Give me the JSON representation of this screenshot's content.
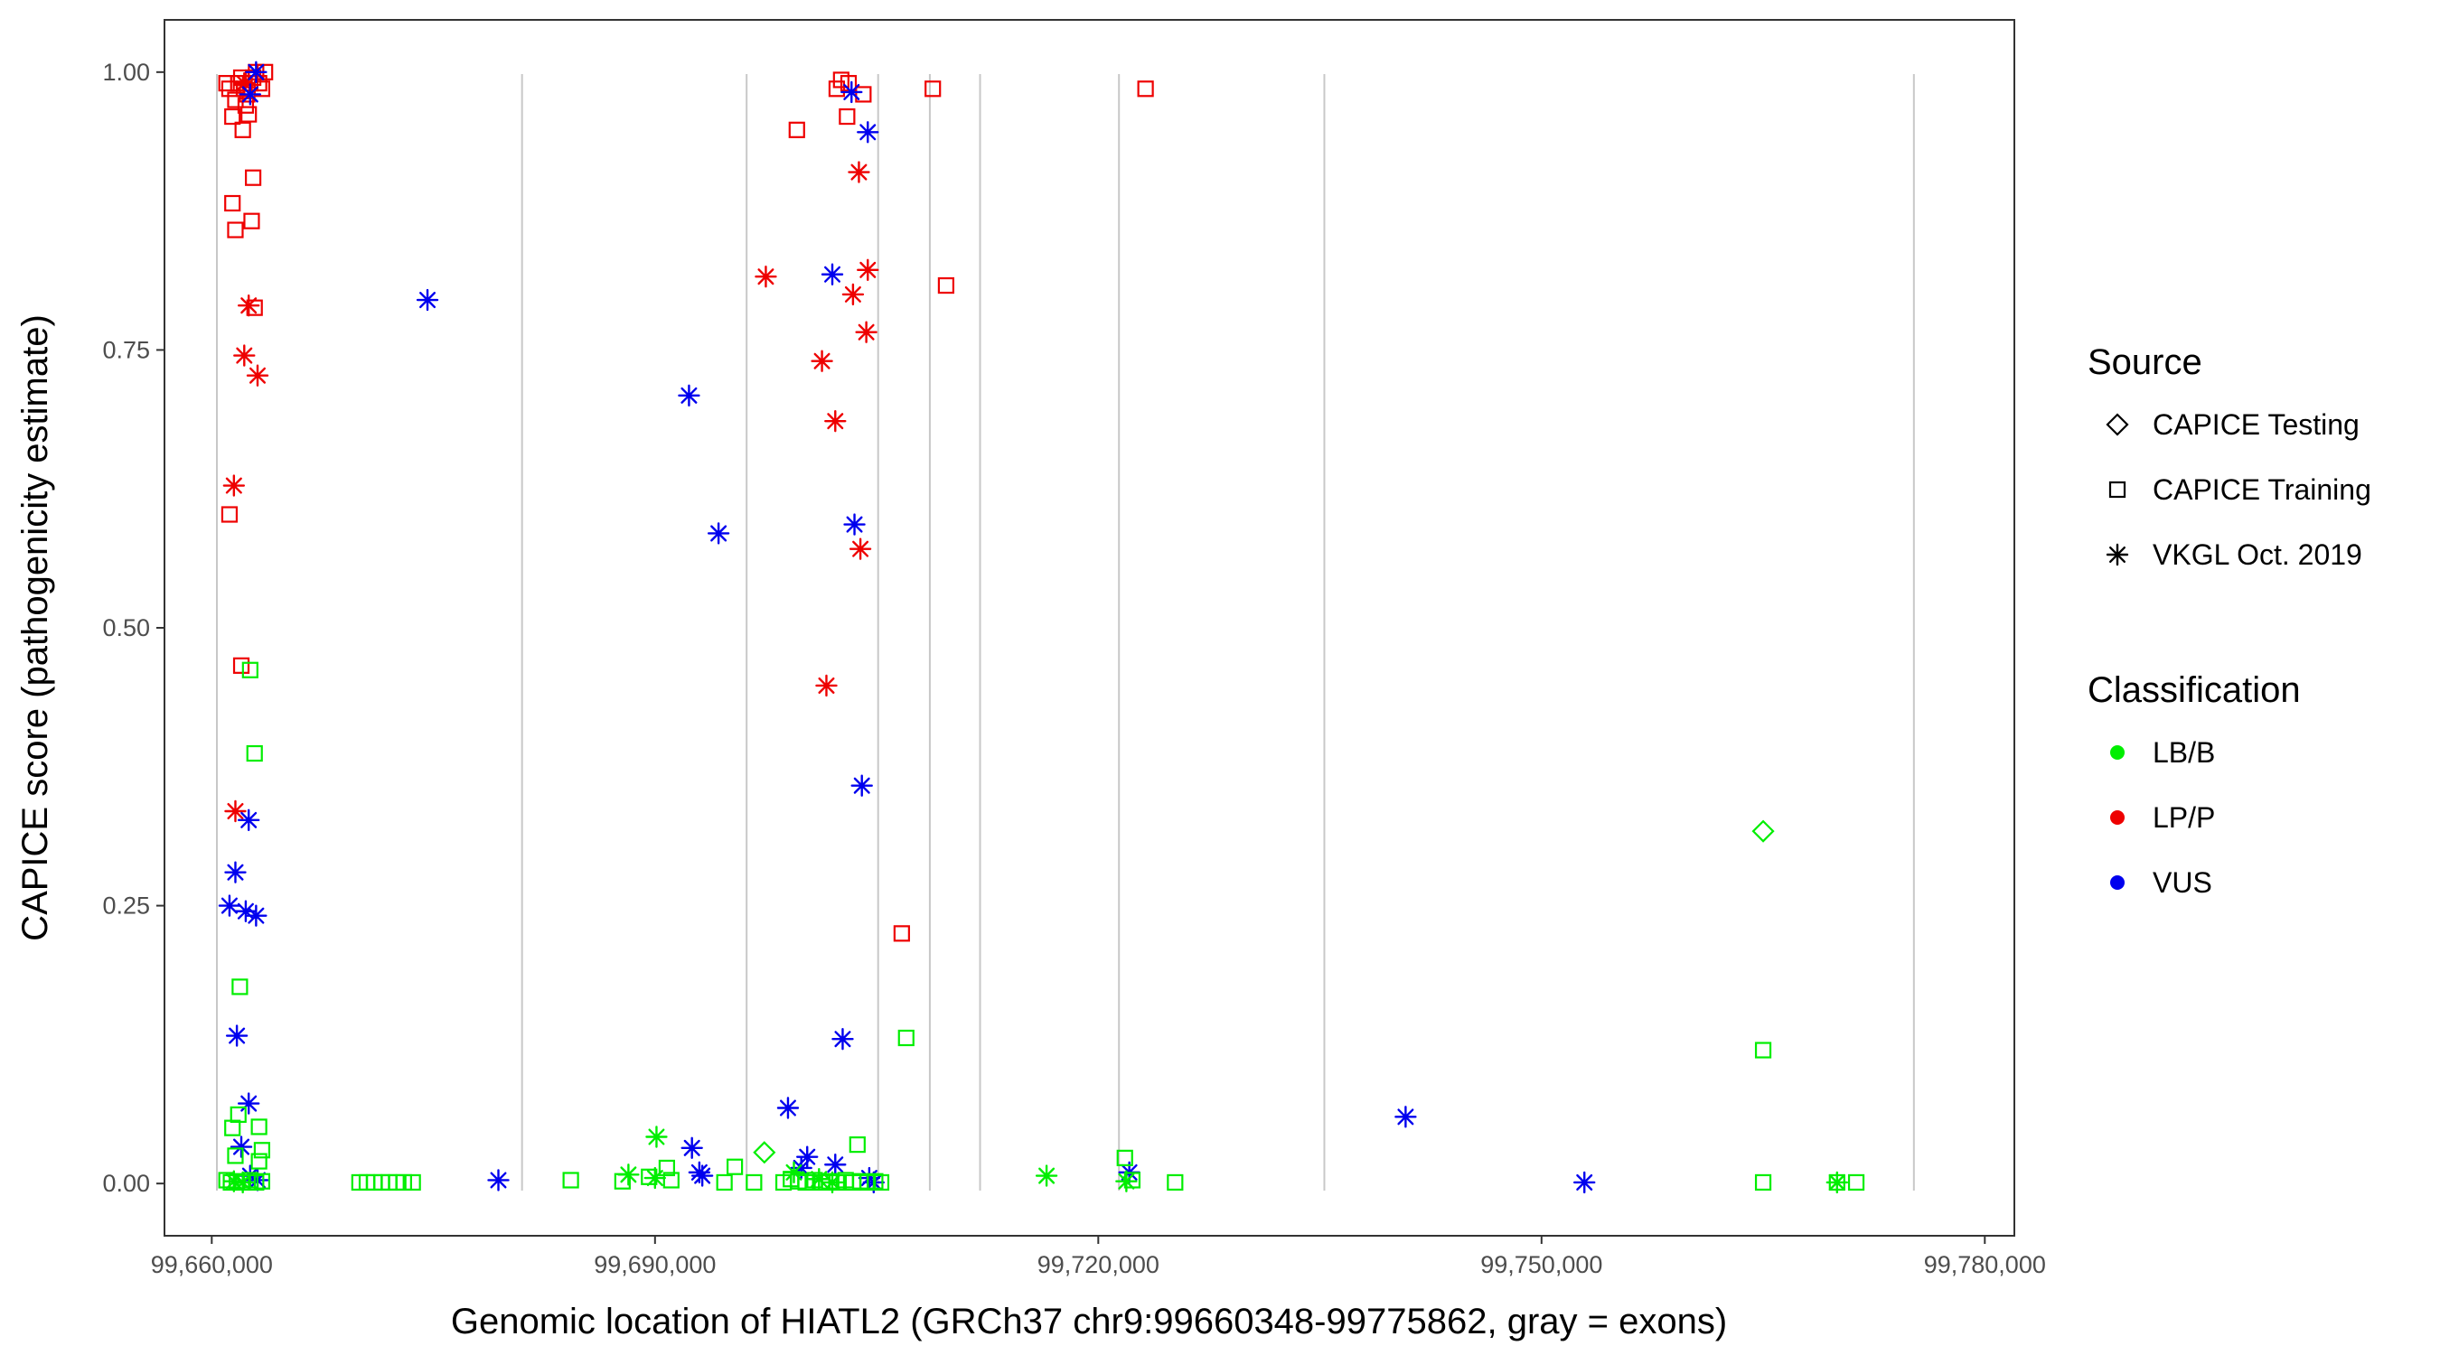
{
  "chart_data": {
    "type": "scatter",
    "xlabel": "Genomic location of HIATL2 (GRCh37 chr9:99660348-99775862, gray = exons)",
    "ylabel": "CAPICE score (pathogenicity estimate)",
    "xlim": [
      99656800,
      99782000
    ],
    "ylim": [
      -0.047,
      1.047
    ],
    "x_ticks": [
      99660000,
      99690000,
      99720000,
      99750000,
      99780000
    ],
    "x_tick_labels": [
      "99,660,000",
      "99,690,000",
      "99,720,000",
      "99,750,000",
      "99,780,000"
    ],
    "y_ticks": [
      0,
      0.25,
      0.5,
      0.75,
      1.0
    ],
    "y_tick_labels": [
      "0.00",
      "0.25",
      "0.50",
      "0.75",
      "1.00"
    ],
    "exons": [
      99660348,
      99681000,
      99696200,
      99705100,
      99708600,
      99712000,
      99721400,
      99735300,
      99775200
    ],
    "grid": false,
    "colors": {
      "LB/B": "#00ee00",
      "LP/P": "#ee0000",
      "VUS": "#0000ee",
      "exon": "#c8c8c8",
      "frame": "#333333",
      "axis_text": "#4d4d4d"
    },
    "legends": [
      {
        "title": "Source",
        "entries": [
          {
            "label": "CAPICE Testing",
            "shape": "diamond"
          },
          {
            "label": "CAPICE Training",
            "shape": "square"
          },
          {
            "label": "VKGL Oct. 2019",
            "shape": "asterisk"
          }
        ]
      },
      {
        "title": "Classification",
        "entries": [
          {
            "label": "LB/B",
            "color": "#00ee00"
          },
          {
            "label": "LP/P",
            "color": "#ee0000"
          },
          {
            "label": "VUS",
            "color": "#0000ee"
          }
        ]
      }
    ],
    "legend_position": "right",
    "series": [
      {
        "source": "CAPICE Training",
        "class": "LP/P",
        "points": [
          [
            99661000,
            0.99
          ],
          [
            99661200,
            0.985
          ],
          [
            99661400,
            0.96
          ],
          [
            99661600,
            0.975
          ],
          [
            99661800,
            0.99
          ],
          [
            99662000,
            0.995
          ],
          [
            99662200,
            0.985
          ],
          [
            99662400,
            0.98
          ],
          [
            99662600,
            0.99
          ],
          [
            99662800,
            0.995
          ],
          [
            99663000,
            1.0
          ],
          [
            99663200,
            0.99
          ],
          [
            99663400,
            0.985
          ],
          [
            99663600,
            1.0
          ],
          [
            99662100,
            0.948
          ],
          [
            99662300,
            0.97
          ],
          [
            99662500,
            0.962
          ],
          [
            99662800,
            0.905
          ],
          [
            99661400,
            0.882
          ],
          [
            99661600,
            0.858
          ],
          [
            99662700,
            0.866
          ],
          [
            99662900,
            0.788
          ],
          [
            99661200,
            0.602
          ],
          [
            99662000,
            0.466
          ],
          [
            99699600,
            0.948
          ],
          [
            99702300,
            0.985
          ],
          [
            99702600,
            0.993
          ],
          [
            99703100,
            0.99
          ],
          [
            99703000,
            0.96
          ],
          [
            99704100,
            0.98
          ],
          [
            99706700,
            0.225
          ],
          [
            99708800,
            0.985
          ],
          [
            99709700,
            0.808
          ],
          [
            99723200,
            0.985
          ]
        ]
      },
      {
        "source": "VKGL Oct. 2019",
        "class": "LP/P",
        "points": [
          [
            99662200,
            0.99
          ],
          [
            99662500,
            0.79
          ],
          [
            99662200,
            0.745
          ],
          [
            99663100,
            0.727
          ],
          [
            99661500,
            0.628
          ],
          [
            99661600,
            0.335
          ],
          [
            99697500,
            0.816
          ],
          [
            99701300,
            0.74
          ],
          [
            99702200,
            0.686
          ],
          [
            99703400,
            0.8
          ],
          [
            99703800,
            0.91
          ],
          [
            99704400,
            0.822
          ],
          [
            99704300,
            0.766
          ],
          [
            99703900,
            0.571
          ],
          [
            99701600,
            0.448
          ]
        ]
      },
      {
        "source": "VKGL Oct. 2019",
        "class": "VUS",
        "points": [
          [
            99663000,
            1.0
          ],
          [
            99662600,
            0.98
          ],
          [
            99674600,
            0.795
          ],
          [
            99692300,
            0.709
          ],
          [
            99694300,
            0.585
          ],
          [
            99702000,
            0.818
          ],
          [
            99703300,
            0.982
          ],
          [
            99704400,
            0.946
          ],
          [
            99703500,
            0.593
          ],
          [
            99704000,
            0.358
          ],
          [
            99702700,
            0.13
          ],
          [
            99662500,
            0.327
          ],
          [
            99661600,
            0.28
          ],
          [
            99661200,
            0.25
          ],
          [
            99662300,
            0.245
          ],
          [
            99663000,
            0.241
          ],
          [
            99661700,
            0.133
          ],
          [
            99662500,
            0.072
          ],
          [
            99662000,
            0.033
          ],
          [
            99662600,
            0.007
          ],
          [
            99663100,
            0.003
          ],
          [
            99679400,
            0.003
          ],
          [
            99692500,
            0.032
          ],
          [
            99693000,
            0.01
          ],
          [
            99693200,
            0.007
          ],
          [
            99699000,
            0.068
          ],
          [
            99700300,
            0.024
          ],
          [
            99699900,
            0.014
          ],
          [
            99702200,
            0.017
          ],
          [
            99704500,
            0.005
          ],
          [
            99704800,
            0.001
          ],
          [
            99722100,
            0.01
          ],
          [
            99740800,
            0.06
          ],
          [
            99752900,
            0.001
          ]
        ]
      },
      {
        "source": "CAPICE Training",
        "class": "LB/B",
        "points": [
          [
            99662600,
            0.462
          ],
          [
            99662900,
            0.387
          ],
          [
            99661900,
            0.177
          ],
          [
            99661400,
            0.05
          ],
          [
            99661800,
            0.062
          ],
          [
            99663200,
            0.051
          ],
          [
            99663400,
            0.03
          ],
          [
            99663200,
            0.02
          ],
          [
            99661600,
            0.025
          ],
          [
            99661000,
            0.003
          ],
          [
            99661300,
            0.001
          ],
          [
            99661700,
            0.002
          ],
          [
            99662100,
            0.001
          ],
          [
            99662600,
            0.003
          ],
          [
            99663000,
            0.001
          ],
          [
            99663400,
            0.002
          ],
          [
            99670000,
            0.001
          ],
          [
            99670500,
            0.001
          ],
          [
            99671000,
            0.001
          ],
          [
            99671500,
            0.001
          ],
          [
            99672000,
            0.001
          ],
          [
            99672500,
            0.001
          ],
          [
            99673000,
            0.001
          ],
          [
            99673600,
            0.001
          ],
          [
            99684300,
            0.003
          ],
          [
            99687800,
            0.002
          ],
          [
            99689600,
            0.006
          ],
          [
            99690800,
            0.014
          ],
          [
            99691100,
            0.003
          ],
          [
            99694700,
            0.001
          ],
          [
            99695400,
            0.015
          ],
          [
            99696700,
            0.001
          ],
          [
            99698700,
            0.001
          ],
          [
            99699200,
            0.004
          ],
          [
            99699700,
            0.002
          ],
          [
            99700200,
            0.001
          ],
          [
            99700800,
            0.003
          ],
          [
            99701300,
            0.001
          ],
          [
            99701800,
            0.002
          ],
          [
            99702300,
            0.001
          ],
          [
            99702900,
            0.003
          ],
          [
            99703400,
            0.001
          ],
          [
            99703900,
            0.002
          ],
          [
            99704400,
            0.001
          ],
          [
            99704900,
            0.002
          ],
          [
            99705300,
            0.001
          ],
          [
            99703700,
            0.035
          ],
          [
            99707000,
            0.131
          ],
          [
            99721800,
            0.023
          ],
          [
            99722300,
            0.003
          ],
          [
            99725200,
            0.001
          ],
          [
            99765000,
            0.12
          ],
          [
            99765000,
            0.001
          ],
          [
            99770000,
            0.001
          ],
          [
            99771300,
            0.001
          ]
        ]
      },
      {
        "source": "VKGL Oct. 2019",
        "class": "LB/B",
        "points": [
          [
            99661500,
            0.002
          ],
          [
            99662100,
            0.001
          ],
          [
            99688200,
            0.008
          ],
          [
            99690000,
            0.005
          ],
          [
            99690100,
            0.042
          ],
          [
            99699400,
            0.01
          ],
          [
            99701100,
            0.004
          ],
          [
            99702000,
            0.001
          ],
          [
            99716500,
            0.007
          ],
          [
            99721900,
            0.002
          ],
          [
            99770000,
            0.001
          ]
        ]
      },
      {
        "source": "CAPICE Testing",
        "class": "LB/B",
        "points": [
          [
            99697400,
            0.028
          ],
          [
            99765000,
            0.317
          ]
        ]
      }
    ]
  }
}
